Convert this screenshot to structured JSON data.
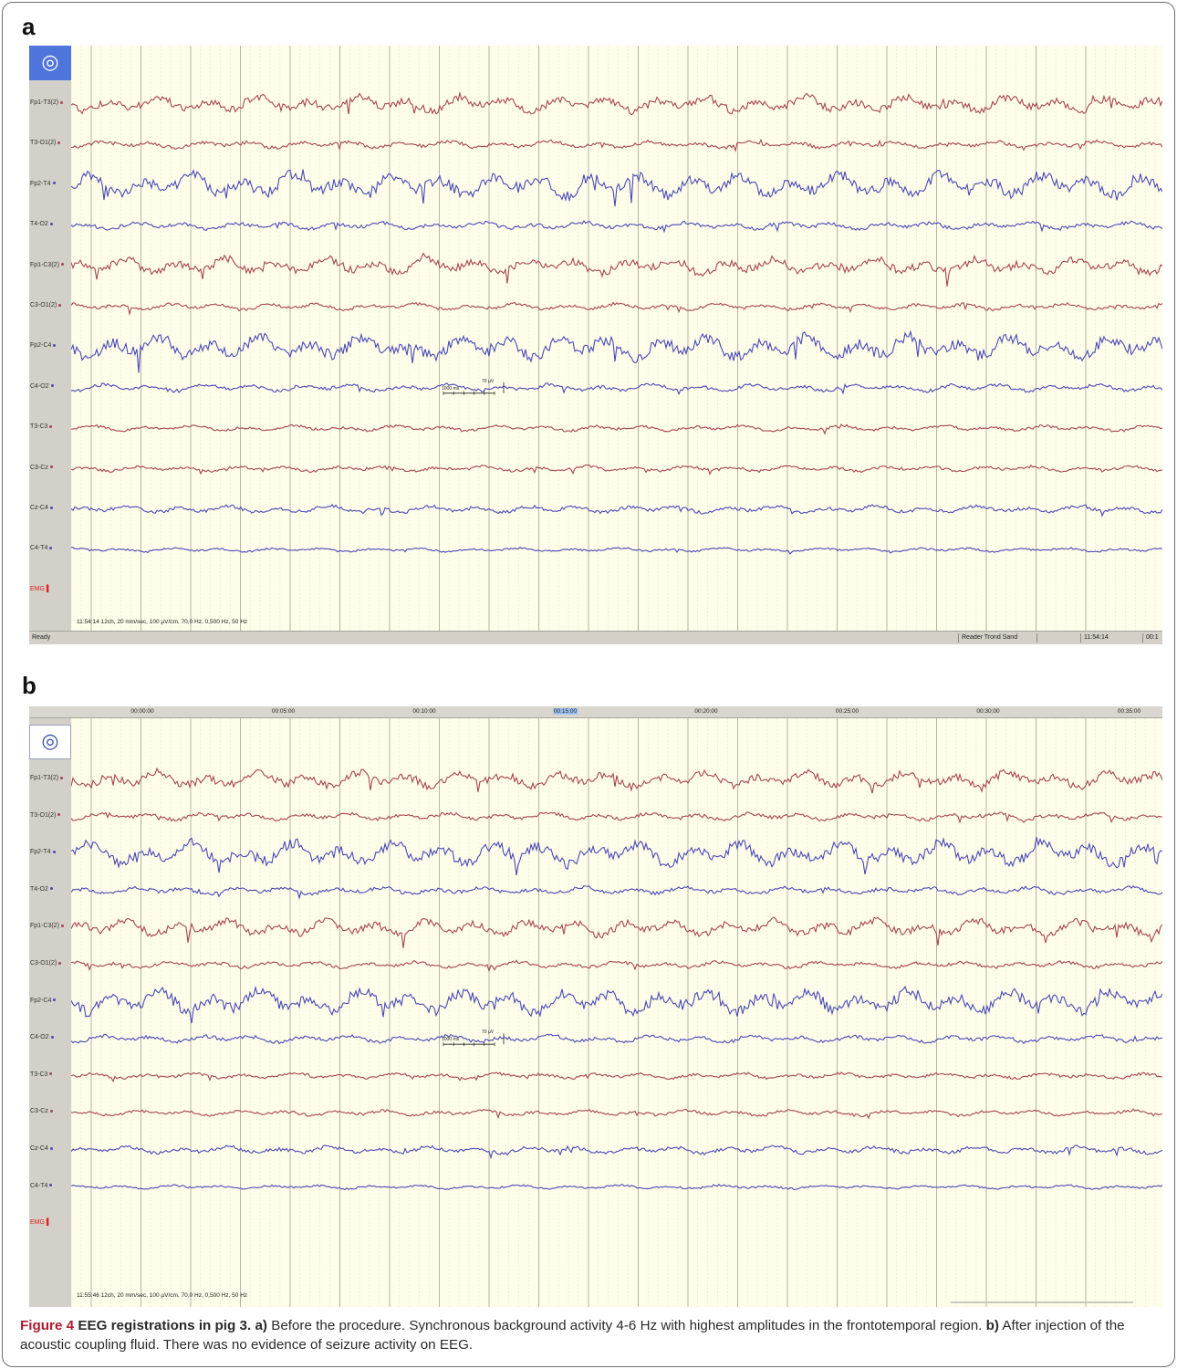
{
  "panels": [
    {
      "letter": "a",
      "record_icon": "record-target-icon",
      "channels": [
        {
          "label": "Fp1-T3(2)",
          "color": "#a8454e",
          "amp": 1.0
        },
        {
          "label": "T3-O1(2)",
          "color": "#a8454e",
          "amp": 0.45
        },
        {
          "label": "Fp2-T4",
          "color": "#4b48b8",
          "amp": 1.45
        },
        {
          "label": "T4-O2",
          "color": "#4b48b8",
          "amp": 0.45
        },
        {
          "label": "Fp1-C3(2)",
          "color": "#a8454e",
          "amp": 1.0
        },
        {
          "label": "C3-O1(2)",
          "color": "#a8454e",
          "amp": 0.4
        },
        {
          "label": "Fp2-C4",
          "color": "#4b48b8",
          "amp": 1.45
        },
        {
          "label": "C4-O2",
          "color": "#4b48b8",
          "amp": 0.45
        },
        {
          "label": "T3-C3",
          "color": "#a8454e",
          "amp": 0.35
        },
        {
          "label": "C3-Cz",
          "color": "#a8454e",
          "amp": 0.35
        },
        {
          "label": "Cz-C4",
          "color": "#4b48b8",
          "amp": 0.45
        },
        {
          "label": "C4-T4",
          "color": "#4b48b8",
          "amp": 0.25
        }
      ],
      "emg_label": "EMG",
      "settings_line": "11:54:14 12ch, 20 mm/sec, 100 µV/cm, 70,0 Hz, 0,500 Hz, 50 Hz",
      "calibration": {
        "time": "1000 ms",
        "amplitude": "70 µV"
      },
      "statusbar": {
        "left": "Ready",
        "reader": "Reader Trond Sand",
        "blank": "",
        "time": "11:54:14",
        "elapsed": "00:1"
      }
    },
    {
      "letter": "b",
      "record_icon": "record-target-icon",
      "ruler": [
        "00:00:00",
        "00:05:00",
        "00:10:00",
        "00:15:00",
        "00:20:00",
        "00:25:00",
        "00:30:00",
        "00:35:00"
      ],
      "ruler_highlight": "00:15:00",
      "channels": [
        {
          "label": "Fp1-T3(2)",
          "color": "#a8454e",
          "amp": 1.0
        },
        {
          "label": "T3-O1(2)",
          "color": "#a8454e",
          "amp": 0.45
        },
        {
          "label": "Fp2-T4",
          "color": "#4b48b8",
          "amp": 1.45
        },
        {
          "label": "T4-O2",
          "color": "#4b48b8",
          "amp": 0.45
        },
        {
          "label": "Fp1-C3(2)",
          "color": "#a8454e",
          "amp": 1.0
        },
        {
          "label": "C3-O1(2)",
          "color": "#a8454e",
          "amp": 0.4
        },
        {
          "label": "Fp2-C4",
          "color": "#4b48b8",
          "amp": 1.45
        },
        {
          "label": "C4-O2",
          "color": "#4b48b8",
          "amp": 0.45
        },
        {
          "label": "T3-C3",
          "color": "#a8454e",
          "amp": 0.35
        },
        {
          "label": "C3-Cz",
          "color": "#a8454e",
          "amp": 0.35
        },
        {
          "label": "Cz-C4",
          "color": "#4b48b8",
          "amp": 0.45
        },
        {
          "label": "C4-T4",
          "color": "#4b48b8",
          "amp": 0.25
        }
      ],
      "emg_label": "EMG",
      "settings_line": "11:55:46 12ch, 20 mm/sec, 100 µV/cm, 70,0 Hz, 0,500 Hz, 50 Hz",
      "calibration": {
        "time": "1000 ms",
        "amplitude": "70 µV"
      }
    }
  ],
  "caption": {
    "figure_label": "Figure 4",
    "title": "EEG registrations in pig 3.",
    "a_label": "a)",
    "a_text": "Before the procedure. Synchronous background activity 4-6 Hz with highest amplitudes in the frontotemporal region.",
    "b_label": "b)",
    "b_text": "After injection of the acoustic coupling fluid. There was no evidence of seizure activity on EEG."
  },
  "colors": {
    "plot_bg": "#fdfde9",
    "red_trace": "#a8454e",
    "blue_trace": "#4b48b8",
    "sidebar": "#d2d0c8",
    "caption_label": "#b0192e"
  }
}
